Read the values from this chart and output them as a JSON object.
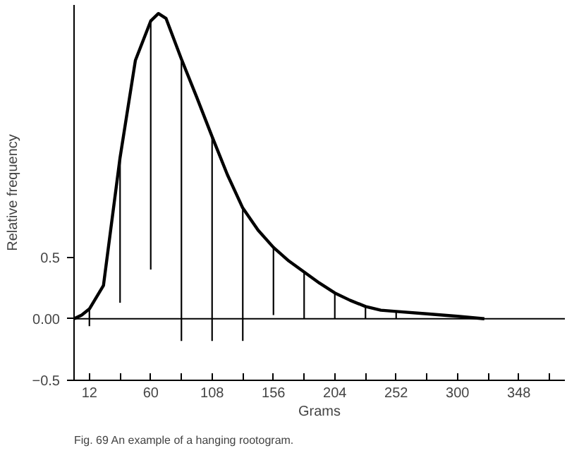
{
  "chart_data": {
    "type": "line",
    "xlabel": "Grams",
    "ylabel": "Relative frequency",
    "annotations": [
      "Fig. 69    An example of a hanging rootogram."
    ],
    "xlim": [
      0,
      384
    ],
    "ylim": [
      -0.5,
      2.55
    ],
    "xticks": [
      12,
      {
        "value": 36,
        "label": null
      },
      60,
      {
        "value": 84,
        "label": null
      },
      108,
      {
        "value": 132,
        "label": null
      },
      156,
      {
        "value": 180,
        "label": null
      },
      204,
      {
        "value": 228,
        "label": null
      },
      252,
      {
        "value": 276,
        "label": null
      },
      300,
      {
        "value": 324,
        "label": null
      },
      348,
      {
        "value": 372,
        "label": null
      }
    ],
    "yticks": [
      -0.5,
      {
        "value": 0,
        "label": "0.00"
      },
      0.5
    ],
    "ref_lines": [
      {
        "axis": "y",
        "value": 0,
        "label": null,
        "color": "#000000"
      }
    ],
    "grid": false,
    "series": [
      {
        "type": "bar",
        "color": "#000000",
        "x": [
          12,
          36,
          60,
          84,
          108,
          132,
          156,
          180,
          204,
          228,
          252
        ],
        "base": [
          -0.06,
          0.13,
          0.4,
          -0.18,
          -0.18,
          -0.18,
          0.03,
          0.0,
          0.0,
          0.0,
          0.0
        ],
        "values": [
          0.14,
          1.18,
          2.0,
          2.29,
          1.66,
          1.08,
          0.55,
          0.38,
          0.21,
          0.1,
          0.06
        ]
      },
      {
        "color": "#000000",
        "x": [
          0,
          6,
          12,
          23,
          36,
          48,
          60,
          66,
          72,
          84,
          96,
          108,
          120,
          132,
          144,
          156,
          168,
          180,
          192,
          204,
          216,
          228,
          240,
          252,
          276,
          300,
          321
        ],
        "values": [
          0,
          0.03,
          0.08,
          0.27,
          1.31,
          2.1,
          2.42,
          2.48,
          2.44,
          2.11,
          1.8,
          1.48,
          1.17,
          0.9,
          0.72,
          0.58,
          0.47,
          0.38,
          0.29,
          0.21,
          0.15,
          0.1,
          0.07,
          0.06,
          0.04,
          0.02,
          0.0
        ]
      }
    ]
  }
}
